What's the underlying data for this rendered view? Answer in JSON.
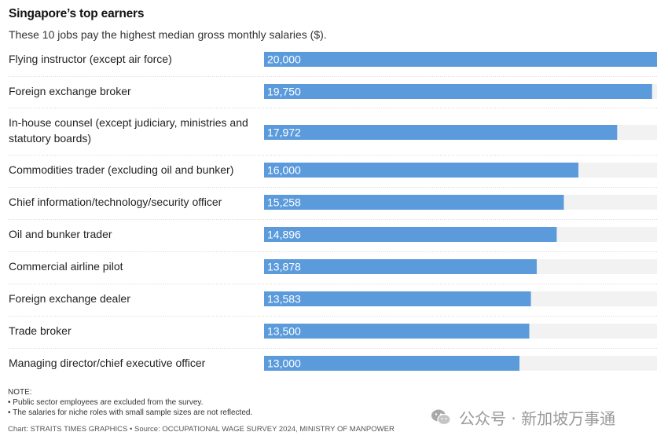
{
  "header": {
    "title": "Singapore’s top earners",
    "subtitle": "These 10 jobs pay the highest median gross monthly salaries ($)."
  },
  "chart_data": {
    "type": "bar",
    "orientation": "horizontal",
    "title": "Singapore’s top earners",
    "subtitle": "These 10 jobs pay the highest median gross monthly salaries ($).",
    "xlabel": "",
    "ylabel": "",
    "xlim": [
      0,
      20000
    ],
    "categories": [
      "Flying instructor (except air force)",
      "Foreign exchange broker",
      "In-house counsel (except judiciary, ministries and statutory boards)",
      "Commodities trader (excluding oil and bunker)",
      "Chief information/technology/security officer",
      "Oil and bunker trader",
      "Commercial airline pilot",
      "Foreign exchange dealer",
      "Trade broker",
      "Managing director/chief executive officer"
    ],
    "values": [
      20000,
      19750,
      17972,
      16000,
      15258,
      14896,
      13878,
      13583,
      13500,
      13000
    ],
    "value_labels": [
      "20,000",
      "19,750",
      "17,972",
      "16,000",
      "15,258",
      "14,896",
      "13,878",
      "13,583",
      "13,500",
      "13,000"
    ],
    "bar_color": "#5b9bdc",
    "track_color": "#f2f2f2"
  },
  "notes": {
    "heading": "NOTE:",
    "items": [
      "• Public sector employees are excluded from the survey.",
      "• The salaries for niche roles with small sample sizes are not reflected."
    ]
  },
  "source": "Chart: STRAITS TIMES GRAPHICS • Source: OCCUPATIONAL WAGE SURVEY 2024, MINISTRY OF MANPOWER",
  "watermark": {
    "icon": "wechat-icon",
    "text": "公众号 · 新加坡万事通"
  }
}
